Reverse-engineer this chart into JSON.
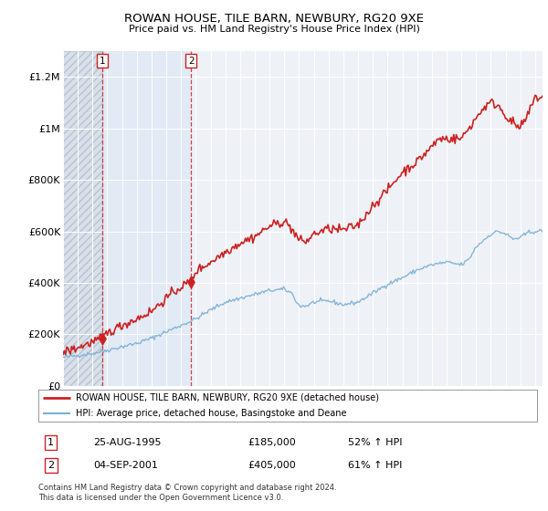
{
  "title": "ROWAN HOUSE, TILE BARN, NEWBURY, RG20 9XE",
  "subtitle": "Price paid vs. HM Land Registry's House Price Index (HPI)",
  "legend_line1": "ROWAN HOUSE, TILE BARN, NEWBURY, RG20 9XE (detached house)",
  "legend_line2": "HPI: Average price, detached house, Basingstoke and Deane",
  "footnote": "Contains HM Land Registry data © Crown copyright and database right 2024.\nThis data is licensed under the Open Government Licence v3.0.",
  "sale1_date": "25-AUG-1995",
  "sale1_price": "£185,000",
  "sale1_hpi": "52% ↑ HPI",
  "sale1_year": 1995.65,
  "sale1_value": 185000,
  "sale2_date": "04-SEP-2001",
  "sale2_price": "£405,000",
  "sale2_hpi": "61% ↑ HPI",
  "sale2_year": 2001.68,
  "sale2_value": 405000,
  "line_color_house": "#cc2222",
  "line_color_hpi": "#7bafd4",
  "bg_color": "#ffffff",
  "plot_bg": "#eef2f7",
  "ylim": [
    0,
    1300000
  ],
  "xlim_start": 1993,
  "xlim_end": 2025.5,
  "yticks": [
    0,
    200000,
    400000,
    600000,
    800000,
    1000000,
    1200000
  ],
  "ylabels": [
    "£0",
    "£200K",
    "£400K",
    "£600K",
    "£800K",
    "£1M",
    "£1.2M"
  ]
}
